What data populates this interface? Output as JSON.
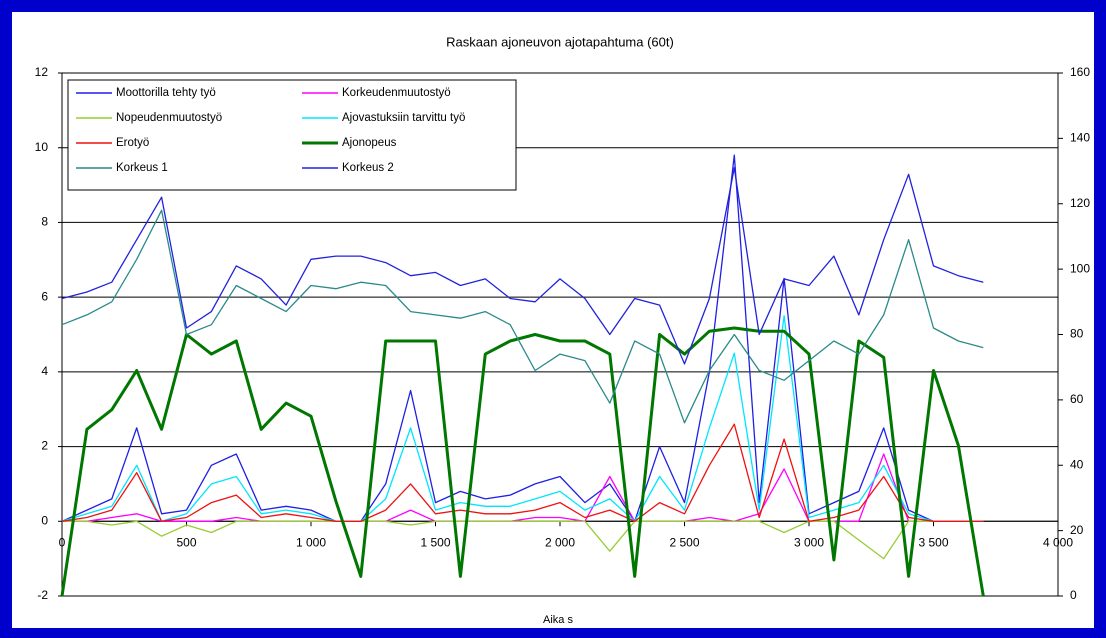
{
  "chart_data": {
    "type": "line",
    "title": "Raskaan ajoneuvon ajotapahtuma (60t)",
    "xlabel": "Aika s",
    "x": [
      0,
      100,
      200,
      300,
      400,
      500,
      600,
      700,
      800,
      900,
      1000,
      1100,
      1200,
      1300,
      1400,
      1500,
      1600,
      1700,
      1800,
      1900,
      2000,
      2100,
      2200,
      2300,
      2400,
      2500,
      2600,
      2700,
      2800,
      2900,
      3000,
      3100,
      3200,
      3300,
      3400,
      3500,
      3600,
      3700
    ],
    "xlim": [
      0,
      4000
    ],
    "xticks": [
      0,
      500,
      {
        "value": 1000,
        "label": "1 000"
      },
      {
        "value": 1500,
        "label": "1 500"
      },
      {
        "value": 2000,
        "label": "2 000"
      },
      {
        "value": 2500,
        "label": "2 500"
      },
      {
        "value": 3000,
        "label": "3 000"
      },
      {
        "value": 3500,
        "label": "3 500"
      },
      {
        "value": 4000,
        "label": "4 000"
      }
    ],
    "ylim": [
      -2,
      12
    ],
    "yticks": [
      -2,
      0,
      2,
      4,
      6,
      8,
      10,
      12
    ],
    "y2lim": [
      0,
      160
    ],
    "y2ticks": [
      0,
      20,
      40,
      60,
      80,
      100,
      120,
      140,
      160
    ],
    "grid": true,
    "legend": "top-left",
    "series": [
      {
        "name": "Moottorilla tehty työ",
        "color": "#1f1fe6",
        "values": [
          0,
          0.3,
          0.6,
          2.5,
          0.2,
          0.3,
          1.5,
          1.8,
          0.3,
          0.4,
          0.3,
          0,
          0,
          1,
          3.5,
          0.5,
          0.8,
          0.6,
          0.7,
          1,
          1.2,
          0.5,
          1,
          0,
          2,
          0.5,
          4,
          9.8,
          0.5,
          6.5,
          0.2,
          0.5,
          0.8,
          2.5,
          0.3,
          0,
          0,
          0
        ]
      },
      {
        "name": "Korkeudenmuutostyö",
        "color": "#ff00ff",
        "values": [
          0,
          0,
          0.1,
          0.2,
          0,
          0,
          0,
          0.1,
          0,
          0,
          0,
          0,
          0,
          0,
          0.3,
          0,
          0,
          0,
          0,
          0.1,
          0.1,
          0,
          1.2,
          0,
          0,
          0,
          0.1,
          0,
          0.2,
          1.4,
          0,
          0,
          0,
          1.8,
          0,
          0,
          0,
          0
        ]
      },
      {
        "name": "Nopeudenmuutostyö",
        "color": "#99cc33",
        "values": [
          0,
          0,
          -0.1,
          0,
          -0.4,
          -0.1,
          -0.3,
          0,
          0,
          0,
          0,
          0,
          0,
          0,
          -0.1,
          0,
          0,
          0,
          0,
          0,
          0,
          0,
          -0.8,
          0,
          0,
          0,
          0,
          0,
          0,
          -0.3,
          0,
          0,
          -0.5,
          -1,
          0,
          0,
          0,
          0
        ]
      },
      {
        "name": "Ajovastuksiin tarvittu työ",
        "color": "#00e5ff",
        "values": [
          0,
          0.2,
          0.4,
          1.5,
          0,
          0.2,
          1,
          1.2,
          0.2,
          0.3,
          0.2,
          0,
          0,
          0.6,
          2.5,
          0.3,
          0.5,
          0.4,
          0.4,
          0.6,
          0.8,
          0.3,
          0.6,
          0,
          1.2,
          0.3,
          2.5,
          4.5,
          0.3,
          5.5,
          0.1,
          0.3,
          0.5,
          1.5,
          0.2,
          0,
          0,
          0
        ]
      },
      {
        "name": "Erotyö",
        "color": "#ee1111",
        "values": [
          0,
          0.1,
          0.3,
          1.3,
          0,
          0.1,
          0.5,
          0.7,
          0.1,
          0.2,
          0.1,
          0,
          0,
          0.3,
          1,
          0.2,
          0.3,
          0.2,
          0.2,
          0.3,
          0.5,
          0.1,
          0.3,
          0,
          0.5,
          0.2,
          1.5,
          2.6,
          0.1,
          2.2,
          0,
          0.1,
          0.3,
          1.2,
          0.1,
          0,
          0,
          0
        ]
      },
      {
        "name": "Ajonopeus",
        "color": "#007700",
        "axis": "y2",
        "values": [
          0,
          51,
          57,
          69,
          51,
          80,
          74,
          78,
          51,
          59,
          55,
          29,
          6,
          78,
          78,
          78,
          6,
          74,
          78,
          80,
          78,
          78,
          74,
          6,
          80,
          74,
          81,
          82,
          81,
          81,
          74,
          11,
          78,
          73,
          6,
          69,
          46,
          0
        ]
      },
      {
        "name": "Korkeus 1",
        "color": "#2a8a8a",
        "axis": "y2",
        "values": [
          83,
          86,
          90,
          103,
          118,
          80,
          83,
          95,
          91,
          87,
          95,
          94,
          96,
          95,
          87,
          86,
          85,
          87,
          83,
          69,
          74,
          72,
          59,
          78,
          74,
          53,
          69,
          80,
          69,
          66,
          72,
          78,
          74,
          86,
          109,
          82,
          78,
          76
        ]
      },
      {
        "name": "Korkeus 2",
        "color": "#2222dd",
        "axis": "y2",
        "values": [
          91,
          93,
          96,
          109,
          122,
          82,
          87,
          101,
          97,
          89,
          103,
          104,
          104,
          102,
          98,
          99,
          95,
          97,
          91,
          90,
          97,
          91,
          80,
          91,
          89,
          71,
          91,
          131,
          80,
          97,
          95,
          104,
          86,
          109,
          129,
          101,
          98,
          96
        ]
      }
    ]
  }
}
